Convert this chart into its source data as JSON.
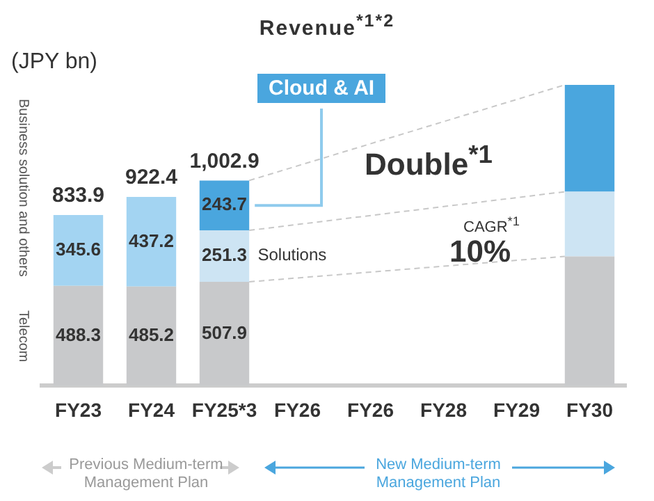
{
  "chart_data": {
    "type": "bar",
    "title": "Revenue$^{*1*2}$",
    "ylabel": "(JPY bn)",
    "stacked": true,
    "categories": [
      "FY23",
      "FY24",
      "FY25*3",
      "FY26",
      "FY26",
      "FY28",
      "FY29",
      "FY30"
    ],
    "series": [
      {
        "name": "Telecom",
        "color": "#c8c9cb",
        "values": [
          488.3,
          485.2,
          507.9,
          null,
          null,
          null,
          null,
          632
        ],
        "value_labels": [
          "488.3",
          "485.2",
          "507.9",
          null,
          null,
          null,
          null,
          null
        ]
      },
      {
        "name": "Business solution and others",
        "color": "#a3d4f2",
        "values": [
          345.6,
          437.2,
          null,
          null,
          null,
          null,
          null,
          null
        ],
        "value_labels": [
          "345.6",
          "437.2",
          null,
          null,
          null,
          null,
          null,
          null
        ]
      },
      {
        "name": "Solutions",
        "color": "#cde4f3",
        "values": [
          null,
          null,
          251.3,
          null,
          null,
          null,
          null,
          316
        ],
        "value_labels": [
          null,
          null,
          "251.3",
          null,
          null,
          null,
          null,
          null
        ]
      },
      {
        "name": "Cloud & AI",
        "color": "#4aa6de",
        "values": [
          null,
          null,
          243.7,
          null,
          null,
          null,
          null,
          522
        ],
        "value_labels": [
          null,
          null,
          "243.7",
          null,
          null,
          null,
          null,
          null
        ]
      }
    ],
    "totals": [
      "833.9",
      "922.4",
      "1,002.9",
      null,
      null,
      null,
      null,
      null
    ],
    "annotations": [
      "Double$^{*1}$",
      "CAGR$^{*1}$",
      "10%",
      "Previous Medium-term Management Plan",
      "New Medium-term Management Plan"
    ]
  }
}
